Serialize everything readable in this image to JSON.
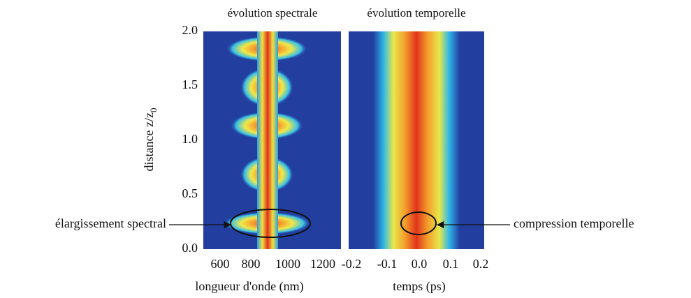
{
  "panels": [
    {
      "title": "évolution spectrale",
      "x_label": "longueur d'onde (nm)",
      "x_ticks": [
        "600",
        "800",
        "1000",
        "1200"
      ]
    },
    {
      "title": "évolution temporelle",
      "x_label": "temps (ps)",
      "x_ticks": [
        "-0.2",
        "-0.1",
        "0.0",
        "0.1",
        "0.2"
      ]
    }
  ],
  "y_axis": {
    "label": "distance z/z",
    "label_subscript": "0",
    "ticks": [
      "0.0",
      "0.5",
      "1.0",
      "1.5",
      "2.0"
    ]
  },
  "annotations": [
    {
      "text": "élargissement spectral"
    },
    {
      "text": "compression temporelle"
    }
  ]
}
